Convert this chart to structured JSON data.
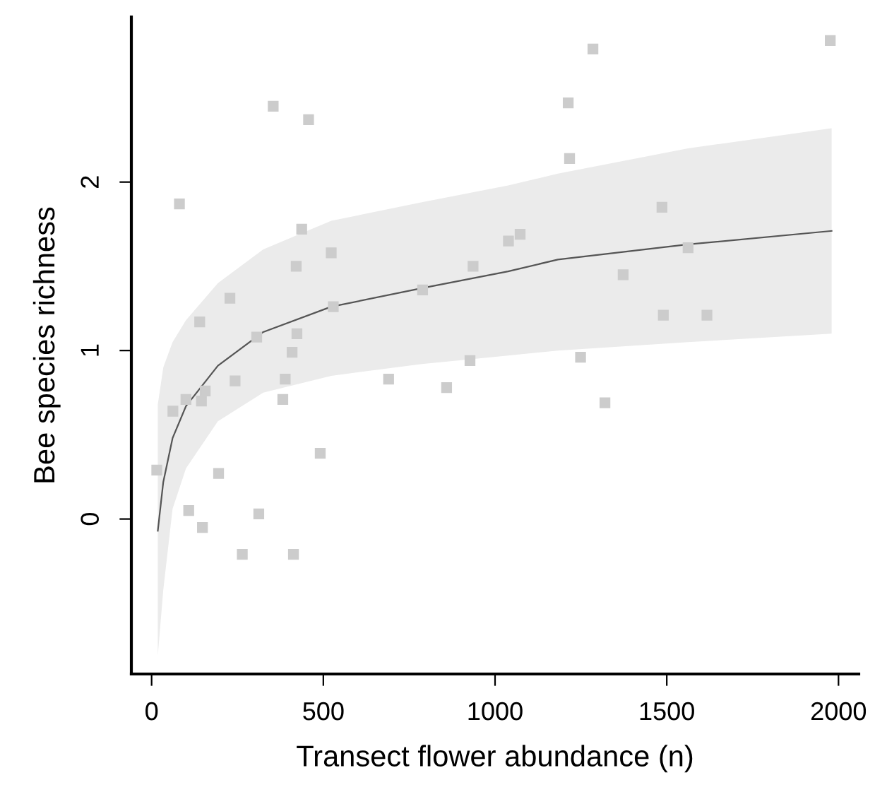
{
  "chart_data": {
    "type": "scatter",
    "xlabel": "Transect flower abundance (n)",
    "ylabel": "Bee species richness",
    "xlim": [
      -59,
      2059
    ],
    "ylim": [
      -0.92,
      2.98
    ],
    "xticks": [
      0,
      500,
      1000,
      1500,
      2000
    ],
    "yticks": [
      0,
      1,
      2
    ],
    "grid": false,
    "series": [
      {
        "marker": "square",
        "color": "#cccccc",
        "x": [
          15,
          62,
          81,
          100,
          108,
          140,
          145,
          156,
          148,
          195,
          228,
          243,
          264,
          306,
          312,
          354,
          382,
          389,
          409,
          413,
          421,
          423,
          437,
          457,
          491,
          523,
          529,
          690,
          789,
          859,
          927,
          936,
          1039,
          1073,
          1213,
          1217,
          1249,
          1285,
          1320,
          1373,
          1486,
          1490,
          1562,
          1617,
          1976
        ],
        "values": [
          0.29,
          0.64,
          1.87,
          0.71,
          0.05,
          1.17,
          0.7,
          0.76,
          -0.05,
          0.27,
          1.31,
          0.82,
          -0.21,
          1.08,
          0.03,
          2.45,
          0.71,
          0.83,
          0.99,
          -0.21,
          1.5,
          1.1,
          1.72,
          2.37,
          0.39,
          1.58,
          1.26,
          0.83,
          1.36,
          0.78,
          0.94,
          1.5,
          1.65,
          1.69,
          2.47,
          2.14,
          0.96,
          2.79,
          0.69,
          1.45,
          1.85,
          1.21,
          1.61,
          1.21,
          2.84
        ]
      },
      {
        "type": "line",
        "color": "#555555",
        "line_style": "solid",
        "x": [
          18,
          34,
          61,
          100,
          193,
          325,
          523,
          787,
          1038,
          1183,
          1562,
          1980
        ],
        "values": [
          -0.07,
          0.22,
          0.48,
          0.67,
          0.91,
          1.11,
          1.26,
          1.37,
          1.47,
          1.54,
          1.63,
          1.71
        ],
        "lower": [
          -0.81,
          -0.42,
          0.06,
          0.3,
          0.58,
          0.75,
          0.85,
          0.92,
          0.97,
          1.0,
          1.05,
          1.1
        ],
        "upper": [
          0.68,
          0.9,
          1.05,
          1.18,
          1.4,
          1.6,
          1.77,
          1.88,
          1.98,
          2.05,
          2.2,
          2.32
        ]
      }
    ]
  }
}
